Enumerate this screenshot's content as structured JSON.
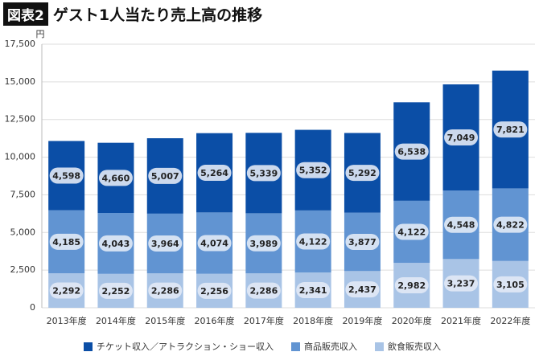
{
  "chart_data": {
    "type": "stacked_bar",
    "figure_label": "図表2",
    "title": "ゲスト1人当たり売上高の推移",
    "y_unit": "円",
    "categories": [
      "2013年度",
      "2014年度",
      "2015年度",
      "2016年度",
      "2017年度",
      "2018年度",
      "2019年度",
      "2020年度",
      "2021年度",
      "2022年度"
    ],
    "series": [
      {
        "name": "飲食販売収入",
        "color": "#a9c4e6",
        "values": [
          2292,
          2252,
          2286,
          2256,
          2286,
          2341,
          2437,
          2982,
          3237,
          3105
        ],
        "value_labels": [
          "2,292",
          "2,252",
          "2,286",
          "2,256",
          "2,286",
          "2,341",
          "2,437",
          "2,982",
          "3,237",
          "3,105"
        ]
      },
      {
        "name": "商品販売収入",
        "color": "#6194d2",
        "values": [
          4185,
          4043,
          3964,
          4074,
          3989,
          4122,
          3877,
          4122,
          4548,
          4822
        ],
        "value_labels": [
          "4,185",
          "4,043",
          "3,964",
          "4,074",
          "3,989",
          "4,122",
          "3,877",
          "4,122",
          "4,548",
          "4,822"
        ]
      },
      {
        "name": "チケット収入／アトラクション・ショー収入",
        "color": "#0b4ea6",
        "values": [
          4598,
          4660,
          5007,
          5264,
          5339,
          5352,
          5292,
          6538,
          7049,
          7821
        ],
        "value_labels": [
          "4,598",
          "4,660",
          "5,007",
          "5,264",
          "5,339",
          "5,352",
          "5,292",
          "6,538",
          "7,049",
          "7,821"
        ]
      }
    ],
    "ylim": [
      0,
      17500
    ],
    "yticks": [
      0,
      {
        "value": 2500,
        "label": "2,500"
      },
      {
        "value": 5000,
        "label": "5,000"
      },
      {
        "value": 7500,
        "label": "7,500"
      },
      {
        "value": 10000,
        "label": "10,000"
      },
      {
        "value": 12500,
        "label": "12,500"
      },
      {
        "value": 15000,
        "label": "15,000"
      },
      {
        "value": 17500,
        "label": "17,500"
      }
    ],
    "grid": true
  }
}
